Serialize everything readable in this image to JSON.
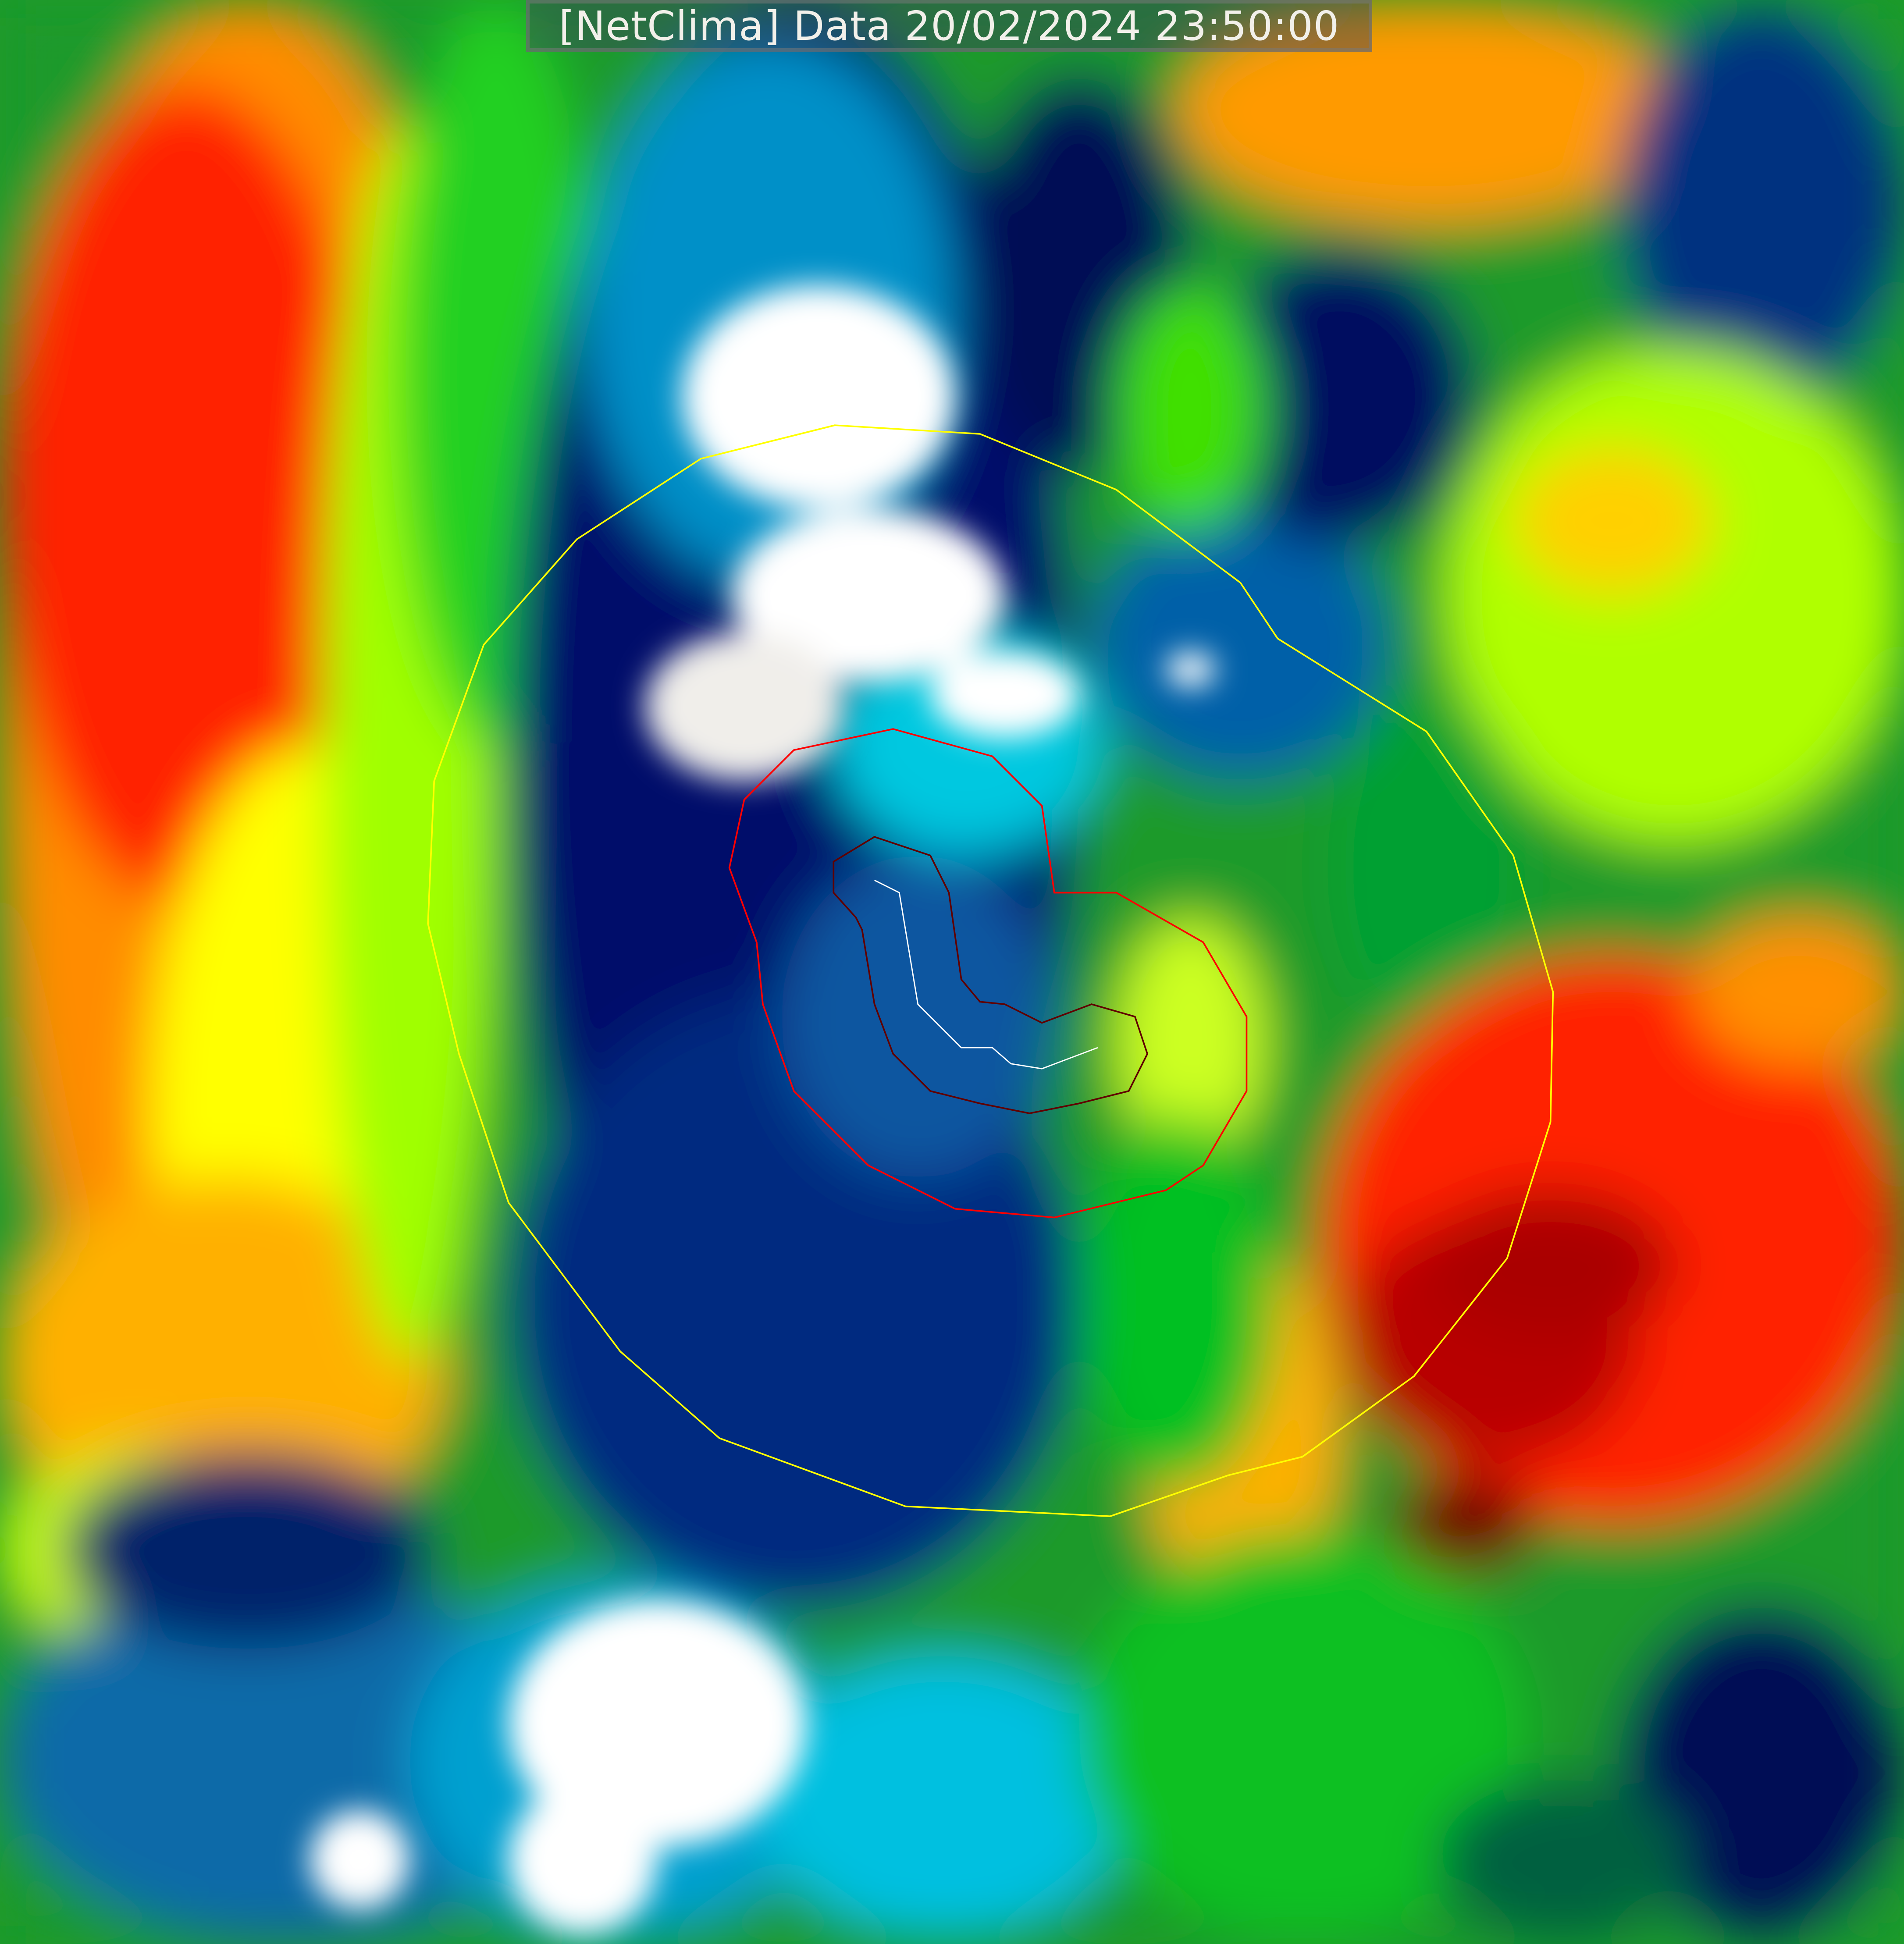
{
  "header": {
    "title": "[NetClima] Data 20/02/2024 23:50:00"
  },
  "map": {
    "type": "satellite infrared cloud-top temperature imagery",
    "contours": [
      {
        "color": "#ffff00"
      },
      {
        "color": "#ff0000"
      },
      {
        "color": "#8b0000"
      },
      {
        "color": "#ffffff"
      }
    ],
    "palette": [
      "#ffffff",
      "#00ffff",
      "#0080c0",
      "#000066",
      "#006633",
      "#00cc00",
      "#80ff00",
      "#ffff00",
      "#ffa500",
      "#ff3300",
      "#990000",
      "#220000"
    ]
  }
}
